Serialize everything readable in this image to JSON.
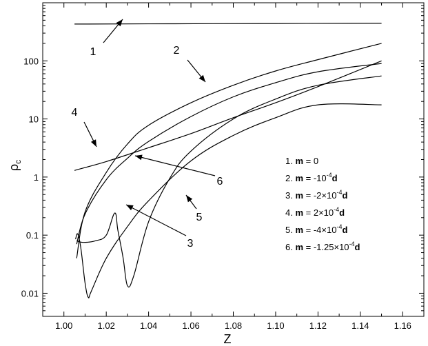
{
  "chart_data": {
    "type": "line",
    "xlabel": "Z",
    "ylabel": "ρ",
    "ylabel_sub": "c",
    "y_scale": "log",
    "xlim": [
      0.99,
      1.17
    ],
    "ylim": [
      0.004,
      1000
    ],
    "x_ticks": [
      1.0,
      1.02,
      1.04,
      1.06,
      1.08,
      1.1,
      1.12,
      1.14,
      1.16
    ],
    "x_tick_labels": [
      "1.00",
      "1.02",
      "1.04",
      "1.06",
      "1.08",
      "1.10",
      "1.12",
      "1.14",
      "1.16"
    ],
    "y_ticks": [
      0.01,
      0.1,
      1,
      10,
      100
    ],
    "y_tick_labels": [
      "0.01",
      "0.1",
      "1",
      "10",
      "100"
    ],
    "legend_position": "center-right",
    "legend": [
      {
        "n": "1.",
        "m": "m",
        "value": "=  0"
      },
      {
        "n": "2.",
        "m": "m",
        "value": "= -10",
        "sup": "-4",
        "d": "d"
      },
      {
        "n": "3.",
        "m": "m",
        "value": "= -2×10",
        "sup": "-4",
        "d": "d"
      },
      {
        "n": "4.",
        "m": "m",
        "value": "=  2×10",
        "sup": "-4",
        "d": "d"
      },
      {
        "n": "5.",
        "m": "m",
        "value": "= -4×10",
        "sup": "-4",
        "d": "d"
      },
      {
        "n": "6.",
        "m": "m",
        "value": "= -1.25×10",
        "sup": "-4",
        "d": "d"
      }
    ],
    "curve_labels": [
      "1",
      "2",
      "3",
      "4",
      "5",
      "6"
    ],
    "series": [
      {
        "label_id": "1",
        "points": [
          [
            1.005,
            430
          ],
          [
            1.05,
            435
          ],
          [
            1.1,
            440
          ],
          [
            1.15,
            445
          ]
        ]
      },
      {
        "label_id": "2",
        "points": [
          [
            1.006,
            0.04
          ],
          [
            1.01,
            0.25
          ],
          [
            1.02,
            1.2
          ],
          [
            1.03,
            3.7
          ],
          [
            1.04,
            7.8
          ],
          [
            1.06,
            19
          ],
          [
            1.08,
            38
          ],
          [
            1.1,
            67
          ],
          [
            1.12,
            105
          ],
          [
            1.15,
            200
          ]
        ]
      },
      {
        "label_id": "3",
        "points": [
          [
            1.006,
            0.08
          ],
          [
            1.009,
            0.075
          ],
          [
            1.015,
            0.08
          ],
          [
            1.02,
            0.1
          ],
          [
            1.024,
            0.24
          ],
          [
            1.0255,
            0.12
          ],
          [
            1.028,
            0.04
          ],
          [
            1.03,
            0.0135
          ],
          [
            1.033,
            0.02
          ],
          [
            1.04,
            0.17
          ],
          [
            1.05,
            0.95
          ],
          [
            1.06,
            2.8
          ],
          [
            1.08,
            10
          ],
          [
            1.1,
            22
          ],
          [
            1.12,
            38
          ],
          [
            1.15,
            55
          ]
        ]
      },
      {
        "label_id": "4",
        "points": [
          [
            1.005,
            1.3
          ],
          [
            1.02,
            1.85
          ],
          [
            1.04,
            3.2
          ],
          [
            1.06,
            5.6
          ],
          [
            1.08,
            10.5
          ],
          [
            1.1,
            19
          ],
          [
            1.12,
            36
          ],
          [
            1.15,
            100
          ]
        ]
      },
      {
        "label_id": "5",
        "points": [
          [
            1.0055,
            0.085
          ],
          [
            1.0065,
            0.105
          ],
          [
            1.008,
            0.06
          ],
          [
            1.01,
            0.015
          ],
          [
            1.0115,
            0.0085
          ],
          [
            1.013,
            0.011
          ],
          [
            1.02,
            0.04
          ],
          [
            1.03,
            0.14
          ],
          [
            1.04,
            0.39
          ],
          [
            1.06,
            1.9
          ],
          [
            1.08,
            5.2
          ],
          [
            1.1,
            10.5
          ],
          [
            1.12,
            17.5
          ],
          [
            1.15,
            17.5
          ]
        ]
      },
      {
        "label_id": "6",
        "points": [
          [
            1.006,
            0.07
          ],
          [
            1.01,
            0.23
          ],
          [
            1.02,
            0.9
          ],
          [
            1.03,
            2.1
          ],
          [
            1.04,
            4.1
          ],
          [
            1.06,
            11
          ],
          [
            1.08,
            24
          ],
          [
            1.1,
            42
          ],
          [
            1.12,
            65
          ],
          [
            1.15,
            90
          ]
        ]
      }
    ]
  }
}
